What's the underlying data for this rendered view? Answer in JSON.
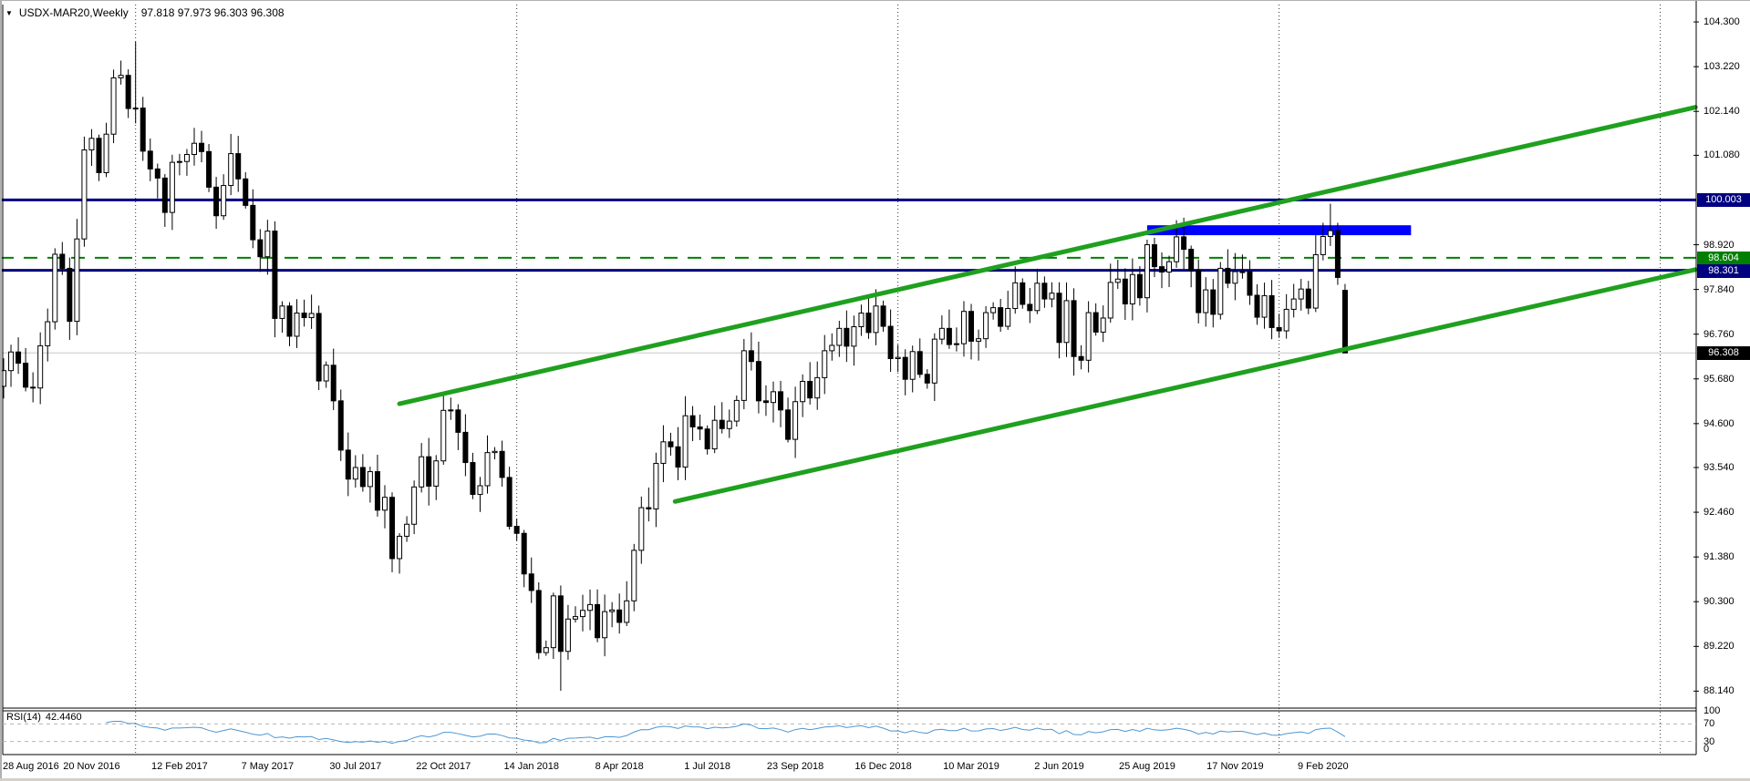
{
  "title": {
    "dropdown_icon": "▼",
    "symbol": "USDX-MAR20,Weekly",
    "ohlc": "97.818 97.973 96.303 96.308"
  },
  "indicator_label": {
    "name": "RSI(14)",
    "value": "42.4460"
  },
  "price_axis": {
    "tick_labels": [
      "104.300",
      "103.220",
      "102.140",
      "101.080",
      "98.920",
      "97.840",
      "96.760",
      "95.680",
      "94.600",
      "93.540",
      "92.460",
      "91.380",
      "90.300",
      "89.220",
      "88.140"
    ],
    "badges": [
      {
        "label": "100.003",
        "price": 100.003,
        "bg": "#000080",
        "fg": "#ffffff"
      },
      {
        "label": "98.604",
        "price": 98.604,
        "bg": "#008000",
        "fg": "#ffffff"
      },
      {
        "label": "98.301",
        "price": 98.301,
        "bg": "#000080",
        "fg": "#ffffff"
      },
      {
        "label": "96.308",
        "price": 96.308,
        "bg": "#000000",
        "fg": "#ffffff"
      }
    ]
  },
  "rsi_axis": {
    "tick_labels": [
      "100",
      "70",
      "30",
      "0"
    ],
    "tick_values": [
      100,
      70,
      30,
      0
    ]
  },
  "time_axis": {
    "labels": [
      "28 Aug 2016",
      "20 Nov 2016",
      "12 Feb 2017",
      "7 May 2017",
      "30 Jul 2017",
      "22 Oct 2017",
      "14 Jan 2018",
      "8 Apr 2018",
      "1 Jul 2018",
      "23 Sep 2018",
      "16 Dec 2018",
      "10 Mar 2019",
      "2 Jun 2019",
      "25 Aug 2019",
      "17 Nov 2019",
      "9 Feb 2020"
    ],
    "weeks_per_label": 12
  },
  "chart_data": {
    "type": "candlestick",
    "symbol": "USDX-MAR20",
    "timeframe": "Weekly",
    "start_date": "28 Aug 2016",
    "current_candle": {
      "open": 97.818,
      "high": 97.973,
      "low": 96.303,
      "close": 96.308
    },
    "ylim": [
      87.73,
      104.72
    ],
    "first_open": 95.5,
    "closes": [
      95.88,
      96.33,
      96.06,
      95.48,
      95.46,
      96.48,
      97.06,
      98.69,
      98.35,
      97.07,
      99.06,
      101.21,
      101.49,
      100.66,
      101.59,
      102.95,
      103.01,
      102.21,
      102.22,
      101.18,
      100.75,
      100.53,
      99.7,
      100.91,
      100.93,
      101.1,
      101.37,
      101.17,
      100.31,
      99.62,
      100.35,
      101.12,
      100.51,
      99.87,
      99.04,
      98.63,
      99.25,
      97.14,
      97.44,
      96.71,
      97.27,
      97.16,
      97.26,
      95.63,
      96.01,
      95.15,
      93.96,
      93.26,
      93.54,
      93.08,
      93.44,
      92.51,
      92.82,
      91.34,
      91.88,
      92.17,
      93.07,
      93.8,
      93.09,
      93.7,
      94.92,
      94.93,
      94.39,
      93.66,
      92.89,
      93.1,
      93.9,
      93.93,
      93.3,
      92.12,
      91.95,
      90.97,
      90.57,
      89.07,
      89.19,
      90.44,
      89.1,
      89.88,
      89.94,
      90.09,
      90.23,
      89.43,
      90.06,
      90.1,
      89.8,
      90.32,
      91.54,
      92.57,
      92.54,
      93.64,
      94.16,
      94.04,
      93.55,
      94.79,
      94.52,
      94.47,
      93.99,
      94.68,
      94.48,
      94.66,
      95.16,
      96.36,
      96.1,
      95.15,
      95.11,
      95.37,
      94.93,
      94.22,
      95.13,
      95.62,
      95.22,
      95.71,
      96.36,
      96.49,
      96.9,
      96.47,
      96.94,
      97.27,
      96.8,
      97.44,
      96.95,
      96.17,
      96.2,
      95.67,
      96.34,
      95.79,
      95.58,
      96.64,
      96.9,
      96.51,
      96.53,
      97.31,
      96.59,
      96.65,
      97.28,
      97.4,
      96.95,
      97.38,
      98.0,
      97.48,
      97.33,
      97.99,
      97.61,
      97.75,
      96.56,
      97.57,
      96.22,
      96.13,
      97.28,
      96.81,
      97.15,
      98.01,
      98.09,
      97.49,
      98.2,
      97.64,
      98.92,
      98.39,
      98.26,
      98.51,
      99.11,
      98.81,
      98.3,
      97.28,
      97.83,
      97.24,
      98.35,
      97.99,
      98.27,
      98.27,
      97.7,
      97.17,
      97.69,
      96.92,
      96.84,
      97.36,
      97.61,
      97.85,
      97.39,
      98.68,
      99.12,
      99.26,
      98.13,
      96.31
    ],
    "wick_overrides": {
      "18": {
        "high": 103.82
      },
      "53": {
        "low": 91.01
      },
      "76": {
        "low": 88.15
      },
      "180": {
        "high": 99.45
      },
      "181": {
        "high": 99.91
      },
      "182": {
        "high": 99.45,
        "low": 97.95
      },
      "183": {
        "open": 97.818,
        "high": 97.973,
        "low": 96.303,
        "close": 96.308
      }
    },
    "levels": [
      {
        "price": 96.308,
        "color": "#c8c8c8",
        "style": "solid",
        "width": 1,
        "name": "current-price-line"
      },
      {
        "price": 100.003,
        "color": "#000080",
        "style": "solid",
        "width": 3,
        "name": "resistance-line-100003"
      },
      {
        "price": 98.604,
        "color": "#008000",
        "style": "dashed",
        "width": 2,
        "name": "dashed-level-98604"
      },
      {
        "price": 98.301,
        "color": "#000080",
        "style": "solid",
        "width": 3,
        "name": "support-line-98301"
      }
    ],
    "trendlines": [
      {
        "name": "channel-upper-trendline",
        "from_week": 54,
        "from_price": 95.08,
        "to_week": 230.8,
        "to_price": 102.24,
        "color": "#1fa01f",
        "width": 5
      },
      {
        "name": "channel-lower-trendline",
        "from_week": 91.6,
        "from_price": 92.72,
        "to_week": 230.8,
        "to_price": 98.32,
        "color": "#1fa01f",
        "width": 5
      }
    ],
    "rectangle": {
      "from_week": 156,
      "to_week": 192,
      "price_top": 99.39,
      "price_bottom": 99.15,
      "color": "#0000ff"
    },
    "year_gridline_weeks": [
      18,
      70,
      122,
      174,
      226
    ],
    "rsi": {
      "period": 14,
      "current": 42.446,
      "guides": [
        70,
        30
      ],
      "range": [
        0,
        100
      ],
      "color": "#4f96d1"
    },
    "candle_up_fill": "#ffffff",
    "candle_down_fill": "#000000",
    "candle_border": "#000000"
  }
}
